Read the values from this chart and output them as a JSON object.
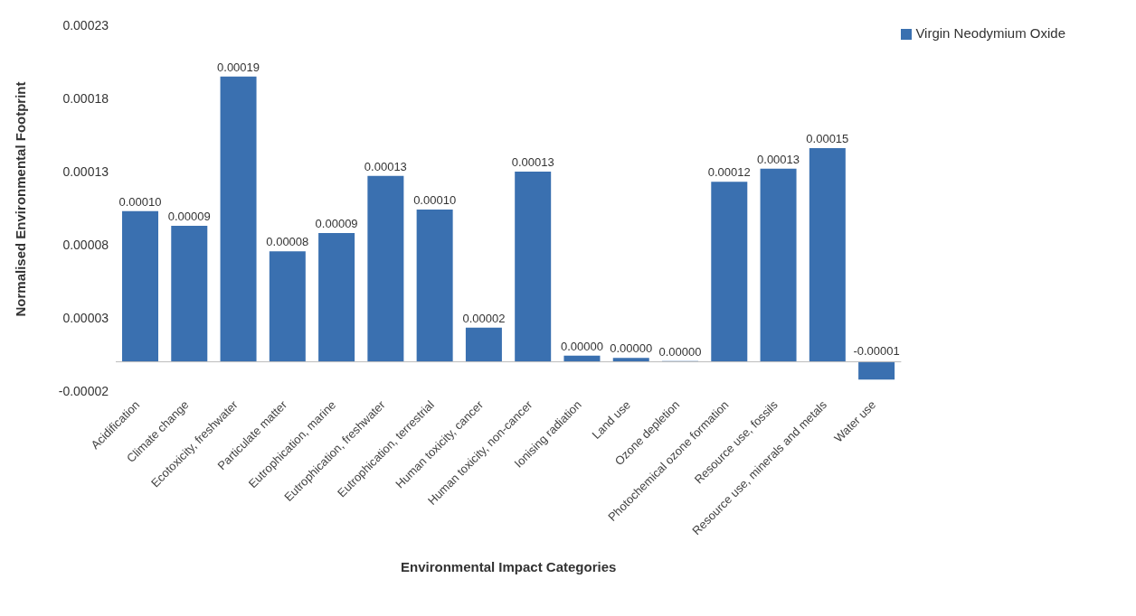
{
  "chart_data": {
    "type": "bar",
    "xlabel": "Environmental Impact Categories",
    "ylabel": "Normalised Environmental Footprint",
    "categories": [
      "Acidification",
      "Climate change",
      "Ecotoxicity, freshwater",
      "Particulate matter",
      "Eutrophication, marine",
      "Eutrophication, freshwater",
      "Eutrophication, terrestrial",
      "Human toxicity, cancer",
      "Human toxicity, non-cancer",
      "Ionising radiation",
      "Land use",
      "Ozone depletion",
      "Photochemical ozone formation",
      "Resource use, fossils",
      "Resource use, minerals and metals",
      "Water use"
    ],
    "series": [
      {
        "name": "Virgin Neodymium Oxide",
        "color": "#3a70b0",
        "values": [
          0.000103,
          9.3e-05,
          0.000195,
          7.55e-05,
          8.8e-05,
          0.000127,
          0.000104,
          2.34e-05,
          0.00013,
          4.3e-06,
          2.7e-06,
          5e-07,
          0.000123,
          0.000132,
          0.000146,
          -1.22e-05
        ],
        "value_labels": [
          "0.00010",
          "0.00009",
          "0.00019",
          "0.00008",
          "0.00009",
          "0.00013",
          "0.00010",
          "0.00002",
          "0.00013",
          "0.00000",
          "0.00000",
          "0.00000",
          "0.00012",
          "0.00013",
          "0.00015",
          "-0.00001"
        ]
      }
    ],
    "ylim": [
      -2e-05,
      0.00023
    ],
    "yticks": [
      {
        "value": -2e-05,
        "label": "-0.00002"
      },
      {
        "value": 3e-05,
        "label": "0.00003"
      },
      {
        "value": 8e-05,
        "label": "0.00008"
      },
      {
        "value": 0.00013,
        "label": "0.00013"
      },
      {
        "value": 0.00018,
        "label": "0.00018"
      },
      {
        "value": 0.00023,
        "label": "0.00023"
      }
    ],
    "grid": false,
    "legend": "top right"
  }
}
